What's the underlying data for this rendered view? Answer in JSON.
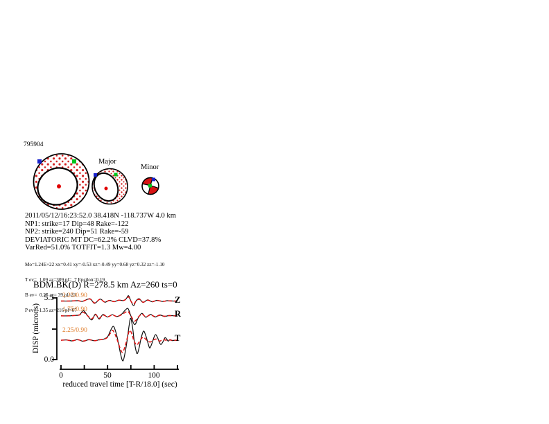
{
  "event_id": "795904",
  "beachballs": {
    "major_label": "Major",
    "minor_label": "Minor",
    "full_mt_marker_colors": {
      "center_dot": "#e00000",
      "blue_square": "#1822cc",
      "green_square": "#00c41e",
      "stipple_dots": "#d42020"
    }
  },
  "solution_lines": [
    "2011/05/12/16:23:52.0 38.418N -118.737W 4.0 km",
    "NP1: strike=17 Dip=48 Rake=-122",
    "NP2: strike=240 Dip=51 Rake=-59",
    "DEVIATORIC MT DC=62.2% CLVD=37.8%",
    "VarRed=51.0% TOTFIT=1.3 Mw=4.00"
  ],
  "moment_tensor_lines": [
    "Mo=1.24E+22 xx=0.41 xy=-0.53 xz=-0.49 yy=0.68 yz=0.32 zz=-1.10",
    "T ev=  1.09 az=309 pl=  7 Epsilon=0.19",
    "B ev=  0.25 az= 39 pl=23",
    "P ev= -1.35 az=216 pl=67"
  ],
  "station_line": "BDM.BK(D) R=278.5 km Az=260 ts=0",
  "plot_labels": {
    "ylabel": "DISP (microns)",
    "ymax": "5.5",
    "ymin": "0.0",
    "xticks": [
      "0",
      "50",
      "100"
    ],
    "xlabel": "reduced travel time [T-R/18.0] (sec)"
  },
  "colors": {
    "data_trace": "#111111",
    "synthetic_trace": "#e01010",
    "scale_label_orange": "#e07f2e",
    "stipple_red": "#d42020",
    "marker_blue": "#1822cc",
    "marker_green": "#00c41e"
  },
  "chart_data": {
    "type": "line",
    "title": "BDM.BK(D) R=278.5 km Az=260 ts=0",
    "xlabel": "reduced travel time [T-R/18.0] (sec)",
    "ylabel": "DISP (microns)",
    "xlim": [
      0,
      127
    ],
    "ylim": [
      0.0,
      5.5
    ],
    "xticks": [
      0,
      50,
      100
    ],
    "legend": "black solid = data, red dashed = synthetic",
    "traces": [
      {
        "name": "Z",
        "scale_label": "2.25/0.90",
        "baseline_microns": 5.23,
        "data": [
          [
            0,
            0
          ],
          [
            10,
            0
          ],
          [
            18,
            0.03
          ],
          [
            23,
            -0.03
          ],
          [
            31,
            0.2
          ],
          [
            36,
            -0.2
          ],
          [
            42,
            0.17
          ],
          [
            47,
            -0.1
          ],
          [
            52,
            0.06
          ],
          [
            57,
            -0.06
          ],
          [
            62,
            0.08
          ],
          [
            67,
            0.04
          ],
          [
            70,
            0.2
          ],
          [
            72.5,
            0.46
          ],
          [
            75,
            0
          ],
          [
            78,
            -0.4
          ],
          [
            80.5,
            0
          ],
          [
            84,
            0.2
          ],
          [
            88,
            -0.12
          ],
          [
            93,
            0.1
          ],
          [
            98,
            -0.07
          ],
          [
            103,
            0.06
          ],
          [
            109,
            -0.04
          ],
          [
            114,
            0.03
          ],
          [
            120,
            0
          ],
          [
            125,
            0
          ]
        ],
        "synthetic": [
          [
            0,
            0
          ],
          [
            10,
            0
          ],
          [
            18,
            0.03
          ],
          [
            23,
            -0.03
          ],
          [
            31,
            0.18
          ],
          [
            36,
            -0.16
          ],
          [
            42,
            0.15
          ],
          [
            47,
            -0.08
          ],
          [
            52,
            0.05
          ],
          [
            57,
            -0.05
          ],
          [
            62,
            0.07
          ],
          [
            67,
            0.04
          ],
          [
            70,
            0.17
          ],
          [
            72.5,
            0.36
          ],
          [
            75,
            0
          ],
          [
            78,
            -0.28
          ],
          [
            80.5,
            0
          ],
          [
            84,
            0.15
          ],
          [
            88,
            -0.1
          ],
          [
            93,
            0.08
          ],
          [
            98,
            -0.05
          ],
          [
            103,
            0.05
          ],
          [
            109,
            -0.03
          ],
          [
            114,
            0.02
          ],
          [
            120,
            0
          ],
          [
            125,
            0
          ]
        ]
      },
      {
        "name": "R",
        "scale_label": "1.75/0.90",
        "baseline_microns": 3.95,
        "data": [
          [
            0,
            0
          ],
          [
            8,
            0
          ],
          [
            15,
            0.04
          ],
          [
            20,
            0.1
          ],
          [
            24,
            0.45
          ],
          [
            28,
            0.08
          ],
          [
            33,
            -0.35
          ],
          [
            37,
            0.15
          ],
          [
            41,
            -0.28
          ],
          [
            45,
            0.12
          ],
          [
            50,
            -0.1
          ],
          [
            55,
            0.1
          ],
          [
            60,
            -0.06
          ],
          [
            65,
            0.15
          ],
          [
            69,
            0.5
          ],
          [
            72,
            0.62
          ],
          [
            75,
            0
          ],
          [
            79,
            -0.75
          ],
          [
            83,
            -0.15
          ],
          [
            87,
            0.22
          ],
          [
            91,
            -0.12
          ],
          [
            96,
            0.12
          ],
          [
            101,
            -0.1
          ],
          [
            106,
            0.08
          ],
          [
            111,
            -0.05
          ],
          [
            116,
            0.03
          ],
          [
            122,
            0
          ],
          [
            125,
            0
          ]
        ],
        "synthetic": [
          [
            0,
            0
          ],
          [
            8,
            0
          ],
          [
            15,
            0.03
          ],
          [
            20,
            0.08
          ],
          [
            24,
            0.3
          ],
          [
            28,
            0.05
          ],
          [
            33,
            -0.25
          ],
          [
            37,
            0.1
          ],
          [
            41,
            -0.2
          ],
          [
            45,
            0.08
          ],
          [
            50,
            -0.08
          ],
          [
            55,
            0.08
          ],
          [
            60,
            -0.05
          ],
          [
            65,
            0.1
          ],
          [
            69,
            0.3
          ],
          [
            72,
            0.38
          ],
          [
            75,
            0
          ],
          [
            79,
            -0.45
          ],
          [
            83,
            -0.1
          ],
          [
            87,
            0.15
          ],
          [
            91,
            -0.08
          ],
          [
            96,
            0.08
          ],
          [
            101,
            -0.06
          ],
          [
            106,
            0.05
          ],
          [
            111,
            -0.03
          ],
          [
            116,
            0.02
          ],
          [
            122,
            0
          ],
          [
            125,
            0
          ]
        ]
      },
      {
        "name": "T",
        "scale_label": "2.25/0.90",
        "baseline_microns": 1.85,
        "data": [
          [
            0,
            0
          ],
          [
            6,
            0.02
          ],
          [
            12,
            -0.06
          ],
          [
            18,
            0.05
          ],
          [
            24,
            -0.09
          ],
          [
            30,
            0.05
          ],
          [
            36,
            -0.05
          ],
          [
            41,
            0.04
          ],
          [
            46,
            0.1
          ],
          [
            50,
            0.3
          ],
          [
            53,
            0.8
          ],
          [
            56,
            1.2
          ],
          [
            58.5,
            0.8
          ],
          [
            61,
            0
          ],
          [
            64,
            -1.2
          ],
          [
            66.5,
            -1.79
          ],
          [
            69,
            -1
          ],
          [
            71,
            0
          ],
          [
            73,
            1.2
          ],
          [
            74.8,
            1.9
          ],
          [
            77,
            1
          ],
          [
            78.5,
            0
          ],
          [
            80.5,
            -0.9
          ],
          [
            82,
            -1.15
          ],
          [
            84,
            -0.6
          ],
          [
            85.5,
            0
          ],
          [
            87.5,
            0.6
          ],
          [
            89,
            0.78
          ],
          [
            91,
            0.4
          ],
          [
            92.5,
            0
          ],
          [
            94.3,
            -0.5
          ],
          [
            95.5,
            -0.66
          ],
          [
            97.5,
            -0.3
          ],
          [
            98.7,
            0
          ],
          [
            100.5,
            0.38
          ],
          [
            101.7,
            0.48
          ],
          [
            103.5,
            0.25
          ],
          [
            104.7,
            0
          ],
          [
            106.3,
            -0.3
          ],
          [
            107.5,
            -0.36
          ],
          [
            109.3,
            -0.15
          ],
          [
            110.3,
            0
          ],
          [
            111.7,
            0.22
          ],
          [
            113.5,
            0.1
          ],
          [
            115,
            -0.08
          ],
          [
            117,
            0.05
          ],
          [
            119,
            -0.03
          ],
          [
            122,
            0
          ],
          [
            125,
            0
          ]
        ],
        "synthetic": [
          [
            0,
            0
          ],
          [
            6,
            0.02
          ],
          [
            12,
            -0.05
          ],
          [
            18,
            0.04
          ],
          [
            24,
            -0.07
          ],
          [
            30,
            0.04
          ],
          [
            36,
            -0.04
          ],
          [
            41,
            0.03
          ],
          [
            46,
            0.08
          ],
          [
            50,
            0.25
          ],
          [
            53,
            0.6
          ],
          [
            55.5,
            0.85
          ],
          [
            58,
            0.5
          ],
          [
            60.5,
            0
          ],
          [
            63.5,
            -0.7
          ],
          [
            66,
            -1.05
          ],
          [
            68.5,
            -0.6
          ],
          [
            70.5,
            0
          ],
          [
            72.5,
            0.6
          ],
          [
            74,
            0.85
          ],
          [
            76.5,
            0.45
          ],
          [
            78,
            0
          ],
          [
            80,
            -0.3
          ],
          [
            81.5,
            -0.42
          ],
          [
            83.5,
            -0.2
          ],
          [
            85,
            0
          ],
          [
            87,
            0.2
          ],
          [
            88.5,
            0.27
          ],
          [
            90.5,
            0.12
          ],
          [
            92,
            0
          ],
          [
            94,
            -0.12
          ],
          [
            96,
            -0.16
          ],
          [
            98,
            -0.05
          ],
          [
            100,
            0.05
          ],
          [
            102,
            0.1
          ],
          [
            104,
            0
          ],
          [
            106,
            -0.08
          ],
          [
            108,
            0
          ],
          [
            110,
            0.05
          ],
          [
            113,
            0
          ],
          [
            116,
            0.03
          ],
          [
            119,
            0
          ],
          [
            122,
            0
          ],
          [
            125,
            0
          ]
        ]
      }
    ]
  }
}
